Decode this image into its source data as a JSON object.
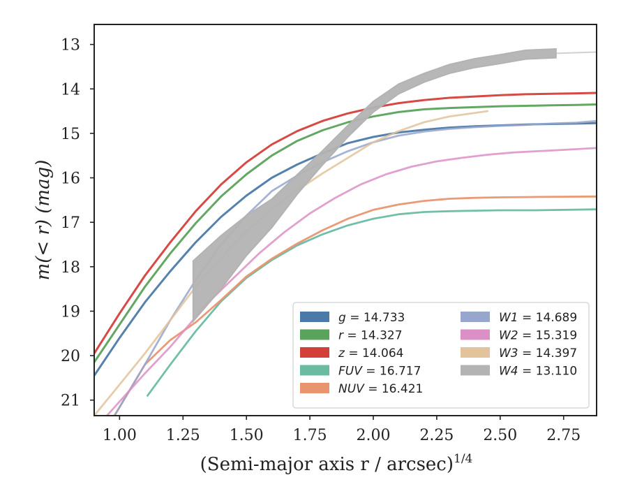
{
  "chart_data": {
    "type": "line",
    "xlabel": "(Semi-major axis r / arcsec)",
    "xlabel_exponent": "1/4",
    "ylabel": "m(< r) (mag)",
    "xlim": [
      0.9,
      2.88
    ],
    "ylim": [
      21.35,
      12.55
    ],
    "y_inverted": true,
    "x_ticks": [
      "1.00",
      "1.25",
      "1.50",
      "1.75",
      "2.00",
      "2.25",
      "2.50",
      "2.75"
    ],
    "y_ticks": [
      "13",
      "14",
      "15",
      "16",
      "17",
      "18",
      "19",
      "20",
      "21"
    ],
    "legend_placement": "lower right",
    "legend_columns": 2,
    "series": [
      {
        "name": "g",
        "legend_value": "14.733",
        "color": "#4c7aa8",
        "x": [
          0.9,
          1.0,
          1.1,
          1.2,
          1.3,
          1.4,
          1.5,
          1.6,
          1.7,
          1.8,
          1.9,
          2.0,
          2.1,
          2.2,
          2.3,
          2.4,
          2.5,
          2.6,
          2.7,
          2.8,
          2.88
        ],
        "y": [
          20.45,
          19.6,
          18.8,
          18.1,
          17.45,
          16.88,
          16.4,
          16.0,
          15.7,
          15.45,
          15.22,
          15.08,
          14.98,
          14.92,
          14.87,
          14.84,
          14.82,
          14.8,
          14.79,
          14.78,
          14.77
        ]
      },
      {
        "name": "r",
        "legend_value": "14.327",
        "color": "#5aa35a",
        "x": [
          0.9,
          1.0,
          1.1,
          1.2,
          1.3,
          1.4,
          1.5,
          1.6,
          1.7,
          1.8,
          1.9,
          2.0,
          2.1,
          2.2,
          2.3,
          2.4,
          2.5,
          2.6,
          2.7,
          2.8,
          2.88
        ],
        "y": [
          20.15,
          19.3,
          18.45,
          17.7,
          17.02,
          16.42,
          15.92,
          15.5,
          15.17,
          14.93,
          14.75,
          14.62,
          14.52,
          14.46,
          14.43,
          14.41,
          14.39,
          14.38,
          14.37,
          14.36,
          14.35
        ]
      },
      {
        "name": "z",
        "legend_value": "14.064",
        "color": "#d43f3a",
        "x": [
          0.9,
          1.0,
          1.1,
          1.2,
          1.3,
          1.4,
          1.5,
          1.6,
          1.7,
          1.8,
          1.9,
          2.0,
          2.1,
          2.2,
          2.3,
          2.4,
          2.5,
          2.6,
          2.7,
          2.8,
          2.88
        ],
        "y": [
          19.95,
          19.05,
          18.2,
          17.45,
          16.75,
          16.15,
          15.65,
          15.25,
          14.95,
          14.72,
          14.55,
          14.42,
          14.32,
          14.25,
          14.2,
          14.17,
          14.14,
          14.12,
          14.11,
          14.1,
          14.09
        ]
      },
      {
        "name": "FUV",
        "legend_value": "16.717",
        "color": "#6bbba3",
        "x": [
          1.11,
          1.2,
          1.3,
          1.4,
          1.5,
          1.6,
          1.7,
          1.8,
          1.9,
          2.0,
          2.1,
          2.2,
          2.3,
          2.4,
          2.5,
          2.64,
          2.88
        ],
        "y": [
          20.9,
          20.2,
          19.45,
          18.78,
          18.25,
          17.85,
          17.52,
          17.27,
          17.07,
          16.92,
          16.82,
          16.77,
          16.75,
          16.74,
          16.73,
          16.73,
          16.71
        ]
      },
      {
        "name": "NUV",
        "legend_value": "16.421",
        "color": "#e8956f",
        "x": [
          0.98,
          1.1,
          1.2,
          1.3,
          1.4,
          1.5,
          1.6,
          1.7,
          1.8,
          1.9,
          2.0,
          2.1,
          2.2,
          2.3,
          2.4,
          2.5,
          2.65,
          2.88
        ],
        "y": [
          21.35,
          20.2,
          19.65,
          19.25,
          18.75,
          18.22,
          17.82,
          17.48,
          17.18,
          16.92,
          16.72,
          16.6,
          16.52,
          16.47,
          16.45,
          16.44,
          16.43,
          16.42
        ]
      },
      {
        "name": "W1",
        "legend_value": "14.689",
        "color": "#96a6cc",
        "x": [
          0.98,
          1.1,
          1.2,
          1.3,
          1.4,
          1.5,
          1.6,
          1.7,
          1.8,
          1.9,
          2.0,
          2.1,
          2.2,
          2.3,
          2.4,
          2.5,
          2.6,
          2.7,
          2.8,
          2.88
        ],
        "y": [
          21.35,
          20.2,
          19.2,
          18.3,
          17.5,
          16.85,
          16.3,
          15.95,
          15.65,
          15.4,
          15.2,
          15.05,
          14.96,
          14.9,
          14.86,
          14.83,
          14.81,
          14.78,
          14.76,
          14.72
        ]
      },
      {
        "name": "W2",
        "legend_value": "15.319",
        "color": "#dc8fc4",
        "x": [
          0.95,
          1.1,
          1.2,
          1.29,
          1.35,
          1.45,
          1.55,
          1.65,
          1.75,
          1.85,
          1.95,
          2.05,
          2.15,
          2.25,
          2.35,
          2.45,
          2.55,
          2.65,
          2.75,
          2.88
        ],
        "y": [
          21.35,
          20.4,
          19.8,
          19.2,
          18.8,
          18.25,
          17.7,
          17.22,
          16.8,
          16.45,
          16.15,
          15.92,
          15.75,
          15.63,
          15.55,
          15.48,
          15.43,
          15.4,
          15.37,
          15.33
        ]
      },
      {
        "name": "W3",
        "legend_value": "14.397",
        "color": "#e2c39c",
        "x": [
          0.9,
          1.0,
          1.1,
          1.2,
          1.3,
          1.4,
          1.5,
          1.6,
          1.7,
          1.8,
          1.9,
          2.0,
          2.1,
          2.2,
          2.3,
          2.45
        ],
        "y": [
          21.35,
          20.65,
          19.95,
          19.2,
          18.45,
          17.8,
          17.2,
          16.7,
          16.28,
          15.9,
          15.55,
          15.2,
          14.95,
          14.75,
          14.62,
          14.5
        ]
      },
      {
        "name": "W4",
        "legend_value": "13.110",
        "color": "#b3b3b3",
        "x": [
          1.29,
          1.4,
          1.5,
          1.6,
          1.7,
          1.8,
          1.9,
          2.0,
          2.1,
          2.2,
          2.3,
          2.4,
          2.5,
          2.6,
          2.72
        ],
        "y": [
          18.55,
          17.9,
          17.3,
          16.8,
          16.15,
          15.55,
          14.95,
          14.4,
          14.0,
          13.75,
          13.55,
          13.42,
          13.33,
          13.23,
          13.2
        ],
        "band_halfwidth": [
          0.68,
          0.6,
          0.45,
          0.32,
          0.22,
          0.16,
          0.13,
          0.12,
          0.11,
          0.1,
          0.1,
          0.1,
          0.1,
          0.1,
          0.1
        ],
        "tail_x": [
          2.72,
          2.88
        ],
        "tail_y": [
          13.2,
          13.17
        ]
      }
    ]
  }
}
